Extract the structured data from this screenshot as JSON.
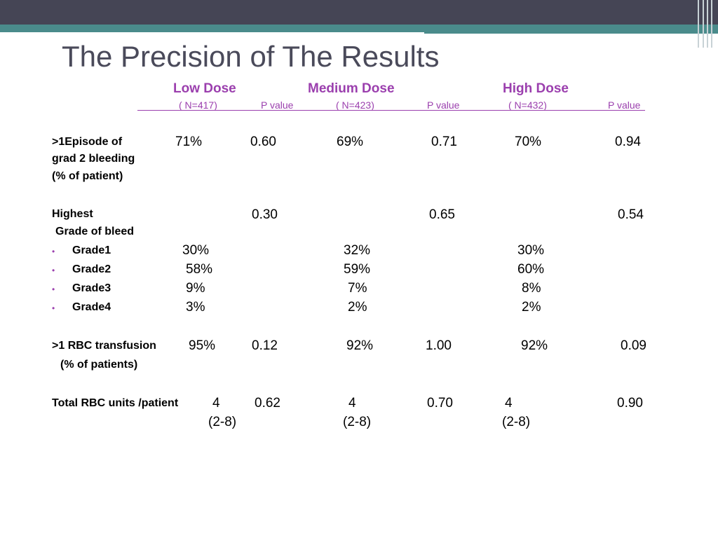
{
  "title": "The Precision of The Results",
  "headers": {
    "low_dose": "Low Dose",
    "medium_dose": "Medium Dose",
    "high_dose": "High Dose",
    "low_n": "( N=417)",
    "medium_n": "( N=423)",
    "high_n": "( N=432)",
    "p_value": "P value"
  },
  "episode": {
    "label_line1": ">1Episode of",
    "label_line2": "grad 2 bleeding",
    "label_line3": "(% of patient)",
    "low": "71%",
    "low_p": "0.60",
    "medium": "69%",
    "medium_p": "0.71",
    "high": "70%",
    "high_p": "0.94"
  },
  "highest": {
    "label_line1": "Highest",
    "label_line2": "Grade of bleed",
    "low_p": "0.30",
    "medium_p": "0.65",
    "high_p": "0.54"
  },
  "grades": [
    {
      "label": "Grade1",
      "low": "30%",
      "medium": "32%",
      "high": "30%"
    },
    {
      "label": "Grade2",
      "low": "58%",
      "medium": "59%",
      "high": "60%"
    },
    {
      "label": "Grade3",
      "low": "9%",
      "medium": "7%",
      "high": "8%"
    },
    {
      "label": "Grade4",
      "low": "3%",
      "medium": "2%",
      "high": "2%"
    }
  ],
  "transfusion": {
    "label_line1": ">1 RBC transfusion",
    "label_line2": "(% of patients)",
    "low": "95%",
    "low_p": "0.12",
    "medium": "92%",
    "medium_p": "1.00",
    "high": "92%",
    "high_p": "0.09"
  },
  "units": {
    "label": "Total RBC units /patient",
    "low": "4",
    "low_range": "(2-8)",
    "low_p": "0.62",
    "medium": "4",
    "medium_range": "(2-8)",
    "medium_p": "0.70",
    "high": "4",
    "high_range": "(2-8)",
    "high_p": "0.90"
  },
  "colors": {
    "accent": "#9b3fae",
    "top_bar": "#454555",
    "teal_bar": "#4a8b8b",
    "title": "#4a4a5a"
  }
}
